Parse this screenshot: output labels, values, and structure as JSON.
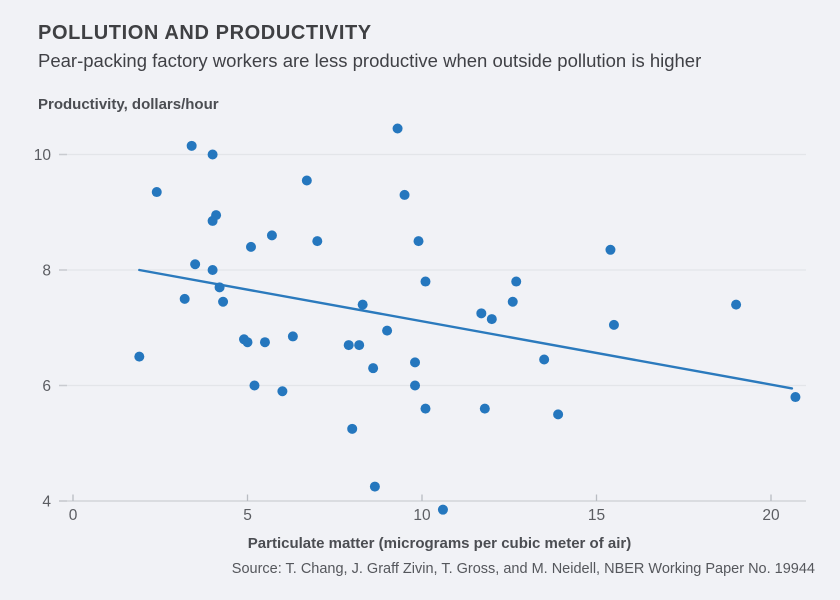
{
  "header": {
    "title": "POLLUTION AND PRODUCTIVITY",
    "subtitle": "Pear-packing factory workers are less productive when outside pollution is higher"
  },
  "chart_data": {
    "type": "scatter",
    "title": "POLLUTION AND PRODUCTIVITY",
    "subtitle": "Pear-packing factory workers are less productive when outside pollution is higher",
    "ylabel": "Productivity, dollars/hour",
    "xlabel": "Particulate matter (micrograms per cubic meter of air)",
    "source": "Source: T. Chang, J. Graff Zivin, T. Gross, and M. Neidell, NBER Working Paper No. 19944",
    "x_ticks": [
      0,
      5,
      10,
      15,
      20
    ],
    "y_ticks": [
      4,
      6,
      8,
      10
    ],
    "xlim": [
      0,
      21
    ],
    "ylim": [
      4,
      10
    ],
    "grid": "horizontal-only",
    "legend": "none",
    "points": [
      [
        1.9,
        6.5
      ],
      [
        2.4,
        9.35
      ],
      [
        3.2,
        7.5
      ],
      [
        3.4,
        10.15
      ],
      [
        3.5,
        8.1
      ],
      [
        4.0,
        10.0
      ],
      [
        4.0,
        8.85
      ],
      [
        4.1,
        8.95
      ],
      [
        4.0,
        8.0
      ],
      [
        4.2,
        7.7
      ],
      [
        4.3,
        7.45
      ],
      [
        4.9,
        6.8
      ],
      [
        5.0,
        6.75
      ],
      [
        5.1,
        8.4
      ],
      [
        5.2,
        6.0
      ],
      [
        5.5,
        6.75
      ],
      [
        5.7,
        8.6
      ],
      [
        6.0,
        5.9
      ],
      [
        6.3,
        6.85
      ],
      [
        6.7,
        9.55
      ],
      [
        7.0,
        8.5
      ],
      [
        7.9,
        6.7
      ],
      [
        8.0,
        5.25
      ],
      [
        8.2,
        6.7
      ],
      [
        8.3,
        7.4
      ],
      [
        8.6,
        6.3
      ],
      [
        8.65,
        4.25
      ],
      [
        9.0,
        6.95
      ],
      [
        9.3,
        10.45
      ],
      [
        9.5,
        9.3
      ],
      [
        9.8,
        6.4
      ],
      [
        9.8,
        6.0
      ],
      [
        9.9,
        8.5
      ],
      [
        10.1,
        7.8
      ],
      [
        10.1,
        5.6
      ],
      [
        10.6,
        3.85
      ],
      [
        11.7,
        7.25
      ],
      [
        11.8,
        5.6
      ],
      [
        12.0,
        7.15
      ],
      [
        12.6,
        7.45
      ],
      [
        12.7,
        7.8
      ],
      [
        13.5,
        6.45
      ],
      [
        13.9,
        5.5
      ],
      [
        15.4,
        8.35
      ],
      [
        15.5,
        7.05
      ],
      [
        19.0,
        7.4
      ],
      [
        20.7,
        5.8
      ]
    ],
    "trend_line": {
      "x1": 1.9,
      "y1": 8.0,
      "x2": 20.6,
      "y2": 5.95
    },
    "colors": {
      "background": "#f1f2f6",
      "dot": "#2577be",
      "trend": "#2b7abd",
      "grid": "#e3e5e9",
      "grid_stub": "#c9cbd0",
      "axis": "#d2d4d9",
      "tick": "#b9bcc2",
      "title_text": "#3f4043",
      "label_text": "#4b4d52",
      "tick_text": "#5b5d62"
    }
  }
}
